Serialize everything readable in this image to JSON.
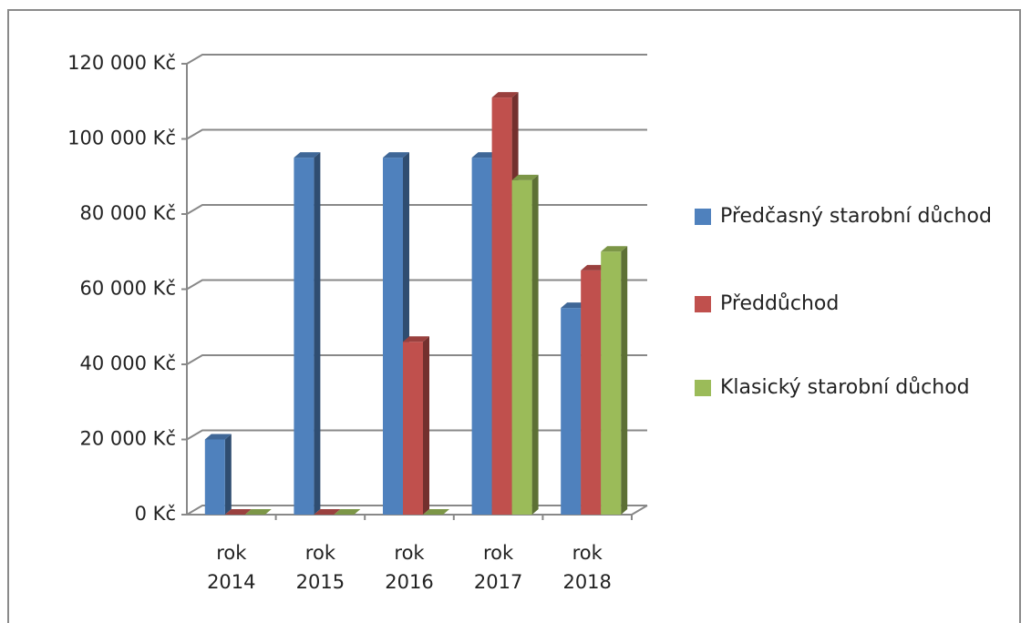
{
  "chart_data": {
    "type": "bar3d",
    "categories": [
      "rok 2014",
      "rok 2015",
      "rok 2016",
      "rok 2017",
      "rok 2018"
    ],
    "series": [
      {
        "name": "Předčasný starobní důchod",
        "color": "#4f81bd",
        "values": [
          20000,
          95000,
          95000,
          95000,
          55000
        ]
      },
      {
        "name": "Předdůchod",
        "color": "#c0504d",
        "values": [
          0,
          0,
          46000,
          111000,
          65000
        ]
      },
      {
        "name": "Klasický starobní důchod",
        "color": "#9bbb59",
        "values": [
          0,
          0,
          0,
          89000,
          70000
        ]
      }
    ],
    "ylim": [
      0,
      120000
    ],
    "yticks": [
      {
        "value": 0,
        "label": "0 Kč"
      },
      {
        "value": 20000,
        "label": "20 000 Kč"
      },
      {
        "value": 40000,
        "label": "40 000 Kč"
      },
      {
        "value": 60000,
        "label": "60 000 Kč"
      },
      {
        "value": 80000,
        "label": "80 000 Kč"
      },
      {
        "value": 100000,
        "label": "100 000 Kč"
      },
      {
        "value": 120000,
        "label": "120 000 Kč"
      }
    ],
    "grid": true,
    "legend": "right"
  }
}
